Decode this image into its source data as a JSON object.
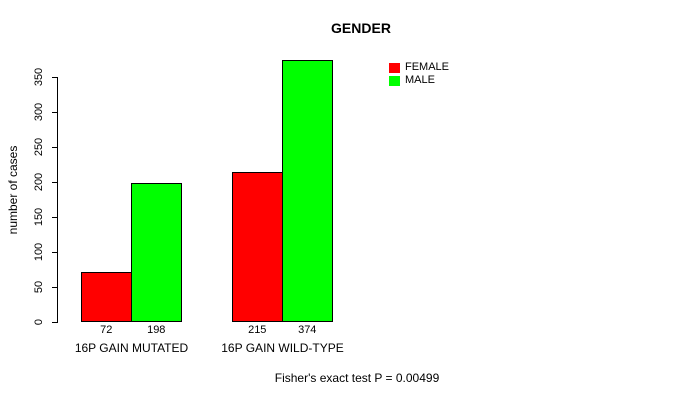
{
  "chart_data": {
    "type": "bar",
    "title": "GENDER",
    "ylabel": "number of cases",
    "xlabel": "",
    "categories": [
      "16P GAIN MUTATED",
      "16P GAIN WILD-TYPE"
    ],
    "series": [
      {
        "name": "FEMALE",
        "color": "#ff0000",
        "values": [
          72,
          215
        ]
      },
      {
        "name": "MALE",
        "color": "#00ff00",
        "values": [
          198,
          374
        ]
      }
    ],
    "yticks": [
      0,
      50,
      100,
      150,
      200,
      250,
      300,
      350
    ],
    "ylim": [
      0,
      350
    ],
    "bar_value_labels": [
      [
        72,
        198
      ],
      [
        215,
        374
      ]
    ],
    "legend_position": "top-right",
    "grid": false,
    "annotation": "Fisher's exact test P = 0.00499",
    "colors": {
      "background": "#ffffff",
      "axis": "#000000",
      "text": "#000000",
      "female": "#ff0000",
      "male": "#00ff00"
    }
  }
}
